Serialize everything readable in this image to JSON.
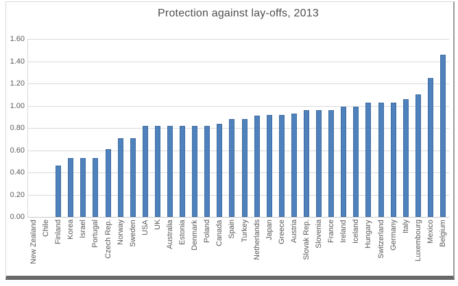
{
  "figure": {
    "kind": "embedded-chart-image",
    "frame_border_light": "#d9d9d9",
    "frame_border_right": "#9a9a9a",
    "frame_border_bottom": "#686868",
    "background": "#ffffff"
  },
  "chart_data": {
    "type": "bar",
    "title": "Protection against lay-offs, 2013",
    "categories": [
      "New Zealand",
      "Chile",
      "Finland",
      "Korea",
      "Israel",
      "Portugal",
      "Czech Rep.",
      "Norway",
      "Sweden",
      "USA",
      "UK",
      "Australia",
      "Estonia",
      "Denmark",
      "Poland",
      "Canada",
      "Spain",
      "Turkey",
      "Netherlands",
      "Japan",
      "Greece",
      "Austria",
      "Slovak Rep.",
      "Slovenia",
      "France",
      "Ireland",
      "Iceland",
      "Hungary",
      "Switzerland",
      "Germany",
      "Italy",
      "Luxembourg",
      "Mexico",
      "Belgium"
    ],
    "values": [
      0.0,
      0.0,
      0.46,
      0.53,
      0.53,
      0.53,
      0.61,
      0.71,
      0.71,
      0.82,
      0.82,
      0.82,
      0.82,
      0.82,
      0.82,
      0.84,
      0.88,
      0.88,
      0.91,
      0.92,
      0.92,
      0.93,
      0.96,
      0.96,
      0.96,
      0.99,
      0.99,
      1.03,
      1.03,
      1.03,
      1.06,
      1.1,
      1.25,
      1.46
    ],
    "xlabel": "",
    "ylabel": "",
    "ylim": [
      0,
      1.6
    ],
    "ytick_step": 0.2,
    "ytick_labels": [
      "0.00",
      "0.20",
      "0.40",
      "0.60",
      "0.80",
      "1.00",
      "1.20",
      "1.40",
      "1.60"
    ],
    "grid": true,
    "legend": "none",
    "x_labels_rotated_degrees": 90,
    "bar_color": "#4f81bd",
    "bar_border_color": "#3e6ca0",
    "gridline_color": "#d9d9d9",
    "axis_line_color": "#c6c6c6",
    "label_color": "#595959",
    "title_color": "#4d4d4d"
  }
}
